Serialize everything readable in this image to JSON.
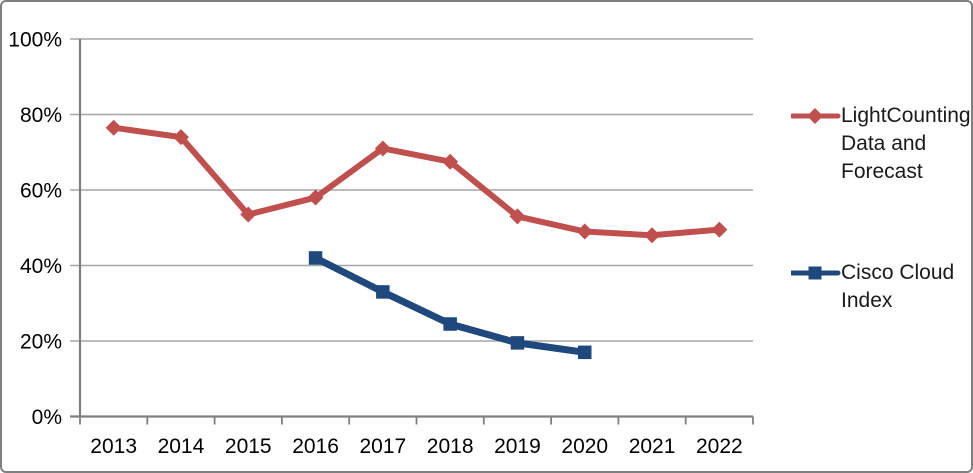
{
  "chart_data": {
    "type": "line",
    "categories": [
      "2013",
      "2014",
      "2015",
      "2016",
      "2017",
      "2018",
      "2019",
      "2020",
      "2021",
      "2022"
    ],
    "series": [
      {
        "name": "LightCounting Data and Forecast",
        "color": "#C0504D",
        "marker": "diamond",
        "line_width": 6,
        "values": [
          76.5,
          74,
          53.5,
          58,
          71,
          67.5,
          53,
          49,
          48,
          49.5
        ]
      },
      {
        "name": "Cisco Cloud Index",
        "color": "#1F497D",
        "marker": "square",
        "line_width": 7,
        "values": [
          null,
          null,
          null,
          42,
          33,
          24.5,
          19.5,
          17,
          null,
          null
        ]
      }
    ],
    "title": "",
    "xlabel": "",
    "ylabel": "",
    "ylim": [
      0,
      100
    ],
    "ytick_step": 20,
    "ytick_labels": [
      "0%",
      "20%",
      "40%",
      "60%",
      "80%",
      "100%"
    ],
    "grid": true,
    "legend_position": "right",
    "gridline_color": "#A6A6A6",
    "axis_color": "#7F7F7F",
    "tick_label_color": "#000000"
  },
  "legend": {
    "items": [
      {
        "label": "LightCounting Data and Forecast"
      },
      {
        "label": "Cisco Cloud Index"
      }
    ]
  }
}
